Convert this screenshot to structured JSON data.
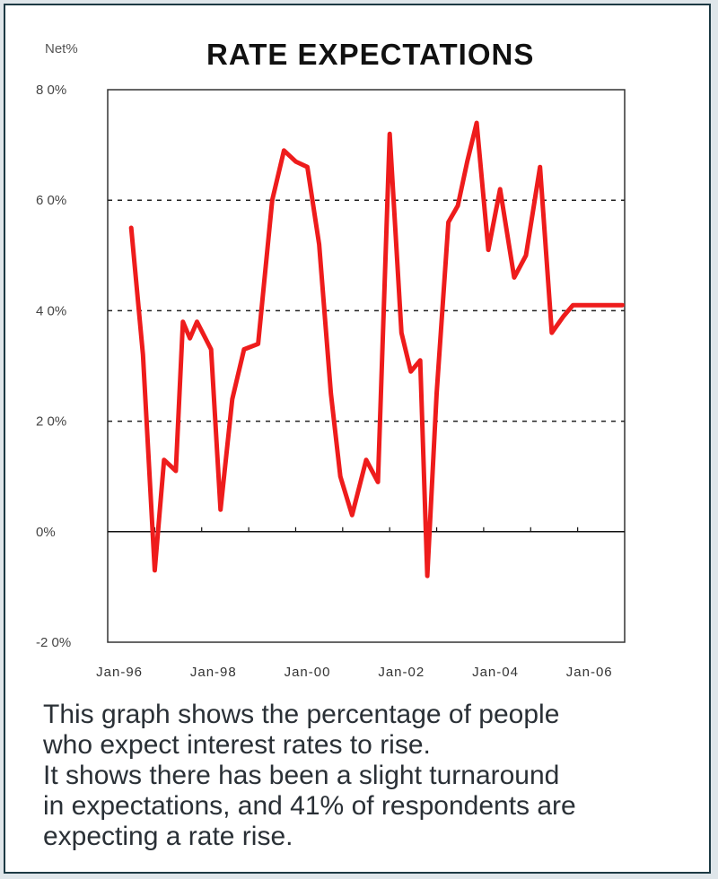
{
  "chart_data": {
    "type": "line",
    "unit_label": "Net%",
    "title": "RATE EXPECTATIONS",
    "ylim": [
      -20,
      80
    ],
    "y_ticks": [
      {
        "value": 80,
        "label": "8 0%"
      },
      {
        "value": 60,
        "label": "6 0%"
      },
      {
        "value": 40,
        "label": "4 0%"
      },
      {
        "value": 20,
        "label": "2 0%"
      },
      {
        "value": 0,
        "label": "0%"
      },
      {
        "value": -20,
        "label": "-2 0%"
      }
    ],
    "dashed_gridlines": [
      60,
      40,
      20
    ],
    "x_ticks": [
      {
        "value": 1996.0,
        "label": "Jan-96"
      },
      {
        "value": 1998.0,
        "label": "Jan-98"
      },
      {
        "value": 2000.0,
        "label": "Jan-00"
      },
      {
        "value": 2002.0,
        "label": "Jan-02"
      },
      {
        "value": 2004.0,
        "label": "Jan-04"
      },
      {
        "value": 2006.0,
        "label": "Jan-06"
      }
    ],
    "xlim": [
      1995.75,
      2006.75
    ],
    "series": [
      {
        "color": "#ee1c1c",
        "x": [
          1996.25,
          1996.5,
          1996.75,
          1996.95,
          1997.2,
          1997.35,
          1997.5,
          1997.65,
          1997.95,
          1998.15,
          1998.4,
          1998.65,
          1998.95,
          1999.25,
          1999.5,
          1999.75,
          2000.0,
          2000.25,
          2000.5,
          2000.7,
          2000.95,
          2001.25,
          2001.5,
          2001.75,
          2002.0,
          2002.2,
          2002.4,
          2002.55,
          2002.75,
          2003.0,
          2003.2,
          2003.4,
          2003.6,
          2003.85,
          2004.1,
          2004.4,
          2004.65,
          2004.95,
          2005.2,
          2005.45,
          2005.65,
          2005.9,
          2006.1,
          2006.3,
          2006.5,
          2006.7
        ],
        "y": [
          55,
          32,
          -7,
          13,
          11,
          38,
          35,
          38,
          33,
          4,
          24,
          33,
          34,
          60,
          69,
          67,
          66,
          52,
          25,
          10,
          3,
          13,
          9,
          72,
          36,
          29,
          31,
          -8,
          25,
          56,
          59,
          67,
          74,
          51,
          62,
          46,
          50,
          66,
          36,
          39,
          41,
          41,
          41,
          41,
          41,
          41
        ]
      }
    ]
  },
  "caption": {
    "line1": "This graph shows the percentage of people",
    "line2": "who expect interest rates to rise.",
    "line3": "It shows there has been a slight turnaround",
    "line4": "in expectations, and 41% of respondents are",
    "line5": "expecting a rate rise."
  }
}
